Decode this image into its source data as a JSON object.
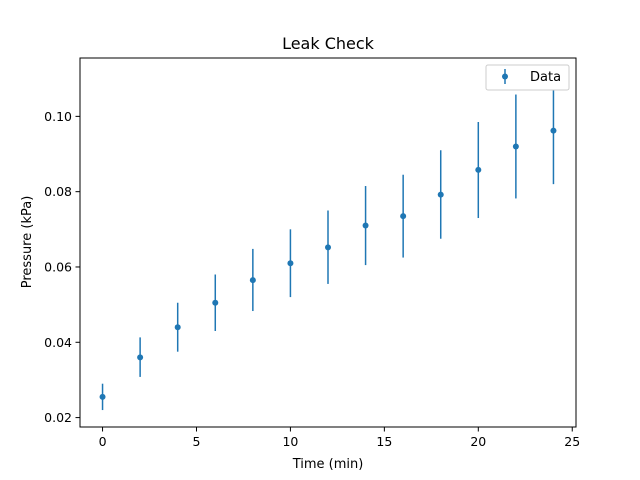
{
  "chart_data": {
    "type": "scatter",
    "title": "Leak Check",
    "xlabel": "Time (min)",
    "ylabel": "Pressure (kPa)",
    "xlim": [
      -1.2,
      25.2
    ],
    "ylim": [
      0.0175,
      0.1155
    ],
    "xticks": [
      0,
      5,
      10,
      15,
      20,
      25
    ],
    "xtick_labels": [
      "0",
      "5",
      "10",
      "15",
      "20",
      "25"
    ],
    "yticks": [
      0.02,
      0.04,
      0.06,
      0.08,
      0.1
    ],
    "ytick_labels": [
      "0.02",
      "0.04",
      "0.06",
      "0.08",
      "0.10"
    ],
    "grid": false,
    "legend_position": "top-right",
    "series": [
      {
        "name": "Data",
        "color": "#1f77b4",
        "marker": "circle",
        "error_bars": true,
        "points": [
          {
            "x": 0,
            "y": 0.0255,
            "lo": 0.022,
            "hi": 0.029
          },
          {
            "x": 2,
            "y": 0.036,
            "lo": 0.0308,
            "hi": 0.0413
          },
          {
            "x": 4,
            "y": 0.044,
            "lo": 0.0375,
            "hi": 0.0505
          },
          {
            "x": 6,
            "y": 0.0505,
            "lo": 0.043,
            "hi": 0.058
          },
          {
            "x": 8,
            "y": 0.0565,
            "lo": 0.0483,
            "hi": 0.0648
          },
          {
            "x": 10,
            "y": 0.061,
            "lo": 0.052,
            "hi": 0.07
          },
          {
            "x": 12,
            "y": 0.0652,
            "lo": 0.0555,
            "hi": 0.075
          },
          {
            "x": 14,
            "y": 0.071,
            "lo": 0.0605,
            "hi": 0.0815
          },
          {
            "x": 16,
            "y": 0.0735,
            "lo": 0.0625,
            "hi": 0.0845
          },
          {
            "x": 18,
            "y": 0.0792,
            "lo": 0.0675,
            "hi": 0.091
          },
          {
            "x": 20,
            "y": 0.0858,
            "lo": 0.073,
            "hi": 0.0985
          },
          {
            "x": 22,
            "y": 0.092,
            "lo": 0.0782,
            "hi": 0.1058
          },
          {
            "x": 24,
            "y": 0.0962,
            "lo": 0.082,
            "hi": 0.1102
          }
        ]
      }
    ]
  }
}
